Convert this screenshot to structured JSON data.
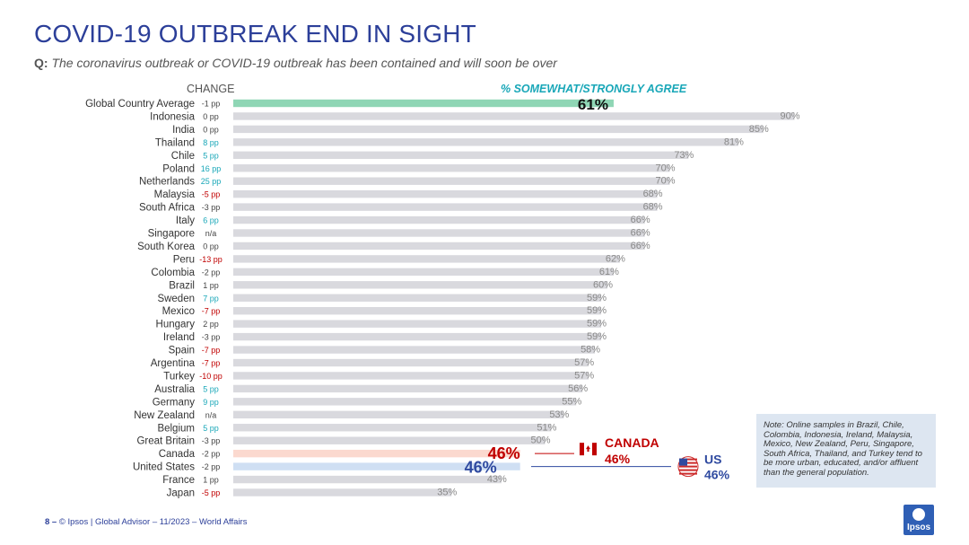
{
  "page": {
    "title": "COVID-19 OUTBREAK END IN SIGHT",
    "question_label": "Q:",
    "question_text": "The coronavirus outbreak or COVID-19 outbreak has been contained and will soon be over",
    "change_header": "CHANGE",
    "agree_header": "% SOMEWHAT/STRONGLY AGREE",
    "note": "Note: Online samples in Brazil, Chile, Colombia, Indonesia, Ireland, Malaysia, Mexico, New Zealand, Peru, Singapore, South Africa, Thailand, and Turkey tend to be more urban, educated, and/or affluent than the general population.",
    "footer_page": "8 –",
    "footer_text": "© Ipsos | Global Advisor – 11/2023 – World Affairs",
    "logo_text": "Ipsos"
  },
  "colors": {
    "title": "#2c3f99",
    "bar_default": "#d9d9de",
    "bar_global": "#8fd6b5",
    "bar_canada": "#fbd9cf",
    "bar_us": "#cfdff3",
    "label_default": "#888888",
    "change_positive": "#19a7b8",
    "change_negative": "#c00000",
    "change_neutral": "#444444",
    "canada": "#c00000",
    "us": "#2f4aa0"
  },
  "chart_data": {
    "type": "bar",
    "orientation": "horizontal",
    "title": "COVID-19 OUTBREAK END IN SIGHT",
    "xlabel": "% SOMEWHAT/STRONGLY AGREE",
    "xlim": [
      0,
      100
    ],
    "categories": [
      "Global Country Average",
      "Indonesia",
      "India",
      "Thailand",
      "Chile",
      "Poland",
      "Netherlands",
      "Malaysia",
      "South Africa",
      "Italy",
      "Singapore",
      "South Korea",
      "Peru",
      "Colombia",
      "Brazil",
      "Sweden",
      "Mexico",
      "Hungary",
      "Ireland",
      "Spain",
      "Argentina",
      "Turkey",
      "Australia",
      "Germany",
      "New Zealand",
      "Belgium",
      "Great Britain",
      "Canada",
      "United States",
      "France",
      "Japan"
    ],
    "values": [
      61,
      90,
      85,
      81,
      73,
      70,
      70,
      68,
      68,
      66,
      66,
      66,
      62,
      61,
      60,
      59,
      59,
      59,
      59,
      58,
      57,
      57,
      56,
      55,
      53,
      51,
      50,
      46,
      46,
      43,
      35
    ],
    "value_labels": [
      "61%",
      "90%",
      "85%",
      "81%",
      "73%",
      "70%",
      "70%",
      "68%",
      "68%",
      "66%",
      "66%",
      "66%",
      "62%",
      "61%",
      "60%",
      "59%",
      "59%",
      "59%",
      "59%",
      "58%",
      "57%",
      "57%",
      "56%",
      "55%",
      "53%",
      "51%",
      "50%",
      "46%",
      "46%",
      "43%",
      "35%"
    ],
    "change_labels": [
      "-1 pp",
      "0 pp",
      "0 pp",
      "8 pp",
      "5 pp",
      "16 pp",
      "25 pp",
      "-5 pp",
      "-3 pp",
      "6 pp",
      "n/a",
      "0 pp",
      "-13 pp",
      "-2 pp",
      "1 pp",
      "7 pp",
      "-7 pp",
      "2 pp",
      "-3 pp",
      "-7 pp",
      "-7 pp",
      "-10 pp",
      "5 pp",
      "9 pp",
      "n/a",
      "5 pp",
      "-3 pp",
      "-2 pp",
      "-2 pp",
      "1 pp",
      "-5 pp"
    ],
    "change_status": [
      "neutral",
      "neutral",
      "neutral",
      "pos",
      "pos",
      "pos",
      "pos",
      "neg",
      "neutral",
      "pos",
      "neutral",
      "neutral",
      "neg",
      "neutral",
      "neutral",
      "pos",
      "neg",
      "neutral",
      "neutral",
      "neg",
      "neg",
      "neg",
      "pos",
      "pos",
      "neutral",
      "pos",
      "neutral",
      "neutral",
      "neutral",
      "neutral",
      "neg"
    ],
    "highlights": {
      "canada": {
        "name": "CANADA",
        "value_label": "46%"
      },
      "us": {
        "name": "US",
        "value_label": "46%"
      }
    }
  }
}
